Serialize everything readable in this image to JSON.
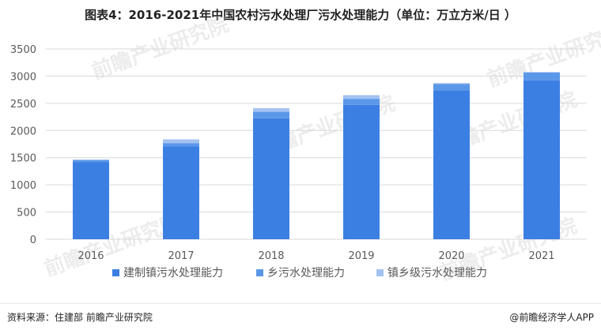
{
  "title": "图表4：2016-2021年中国农村污水处理厂污水处理能力（单位：万立方米/日 ）",
  "source": "资料来源：住建部 前瞻产业研究院",
  "credit": "@前瞻经济学人APP",
  "watermark": "前瞻产业研究院",
  "colors": {
    "series_1": "#3c7fe2",
    "series_2": "#5b97e8",
    "series_3": "#a3c2f2",
    "gridline": "#d9d9d9",
    "axis_text": "#595959"
  },
  "chart_data": {
    "type": "bar",
    "stacked": true,
    "title": "图表4：2016-2021年中国农村污水处理厂污水处理能力（单位：万立方米/日 ）",
    "categories": [
      "2016",
      "2017",
      "2018",
      "2019",
      "2020",
      "2021"
    ],
    "series": [
      {
        "name": "建制镇污水处理能力",
        "values": [
          1422,
          1706,
          2226,
          2473,
          2741,
          2924
        ]
      },
      {
        "name": "乡污水处理能力",
        "values": [
          31,
          63,
          118,
          110,
          115,
          140
        ]
      },
      {
        "name": "镇乡级污水处理能力",
        "values": [
          16,
          68,
          66,
          68,
          17,
          12
        ]
      }
    ],
    "y_ticks": [
      0,
      500,
      1000,
      1500,
      2000,
      2500,
      3000,
      3500
    ],
    "ylim": [
      0,
      3500
    ],
    "grid": true,
    "legend_position": "bottom"
  }
}
